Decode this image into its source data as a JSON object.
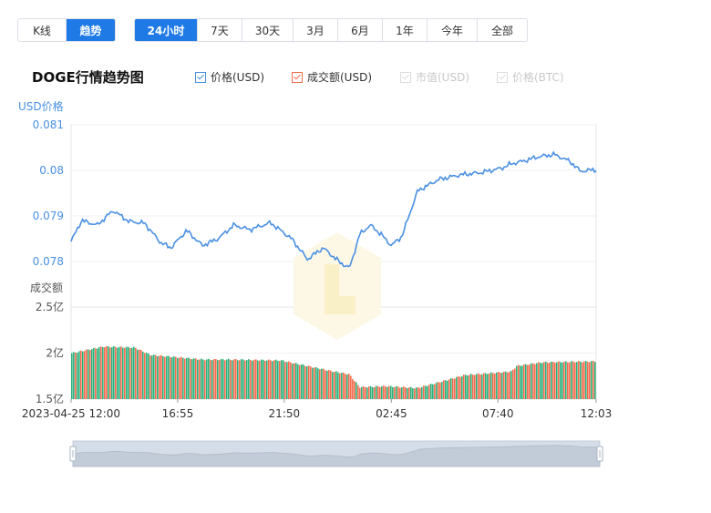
{
  "range_toggle": {
    "items": [
      {
        "label": "K线",
        "active": false
      },
      {
        "label": "趋势",
        "active": true
      }
    ]
  },
  "period_tabs": {
    "items": [
      {
        "label": "24小时",
        "active": true
      },
      {
        "label": "7天",
        "active": false
      },
      {
        "label": "30天",
        "active": false
      },
      {
        "label": "3月",
        "active": false
      },
      {
        "label": "6月",
        "active": false
      },
      {
        "label": "1年",
        "active": false
      },
      {
        "label": "今年",
        "active": false
      },
      {
        "label": "全部",
        "active": false
      }
    ]
  },
  "chart_title": "DOGE行情趋势图",
  "legend": [
    {
      "label": "价格(USD)",
      "checked": true,
      "enabled": true,
      "color": "#4a90e2"
    },
    {
      "label": "成交额(USD)",
      "checked": true,
      "enabled": true,
      "color": "#f26b4d"
    },
    {
      "label": "市值(USD)",
      "checked": false,
      "enabled": false,
      "color": "#cccccc"
    },
    {
      "label": "价格(BTC)",
      "checked": false,
      "enabled": false,
      "color": "#cccccc"
    }
  ],
  "colors": {
    "accent": "#1f7ae6",
    "price_line": "#4a90e2",
    "volume_up": "#2ab07a",
    "volume_down": "#f26b4d",
    "price_axis_text": "#4a90e2",
    "volume_axis_text": "#555555"
  },
  "chart_data": {
    "type": "line",
    "price_axis": {
      "label": "USD价格",
      "ticks": [
        "0.081",
        "0.08",
        "0.079",
        "0.078"
      ],
      "tick_values": [
        0.081,
        0.08,
        0.079,
        0.078
      ],
      "range": [
        0.0778,
        0.081
      ]
    },
    "volume_axis": {
      "label": "成交额",
      "ticks": [
        "2.5亿",
        "2亿",
        "1.5亿"
      ],
      "tick_values": [
        2.5,
        2.0,
        1.5
      ],
      "unit": "亿",
      "range": [
        1.5,
        2.5
      ]
    },
    "x_axis": {
      "tick_labels": [
        "2023-04-25 12:00",
        "16:55",
        "21:50",
        "02:45",
        "07:40",
        "12:03"
      ],
      "start": "2023-04-25 12:00",
      "end": "12:03"
    },
    "price_keypoints": [
      {
        "t": 0.0,
        "v": 0.07844
      },
      {
        "t": 0.02,
        "v": 0.0789
      },
      {
        "t": 0.05,
        "v": 0.0788
      },
      {
        "t": 0.08,
        "v": 0.07912
      },
      {
        "t": 0.11,
        "v": 0.07888
      },
      {
        "t": 0.14,
        "v": 0.07884
      },
      {
        "t": 0.17,
        "v": 0.07842
      },
      {
        "t": 0.19,
        "v": 0.0783
      },
      {
        "t": 0.22,
        "v": 0.07868
      },
      {
        "t": 0.25,
        "v": 0.07835
      },
      {
        "t": 0.28,
        "v": 0.0785
      },
      {
        "t": 0.31,
        "v": 0.0788
      },
      {
        "t": 0.34,
        "v": 0.0787
      },
      {
        "t": 0.38,
        "v": 0.07885
      },
      {
        "t": 0.42,
        "v": 0.0785
      },
      {
        "t": 0.45,
        "v": 0.07805
      },
      {
        "t": 0.48,
        "v": 0.0783
      },
      {
        "t": 0.51,
        "v": 0.078
      },
      {
        "t": 0.53,
        "v": 0.07785
      },
      {
        "t": 0.55,
        "v": 0.0786
      },
      {
        "t": 0.57,
        "v": 0.0788
      },
      {
        "t": 0.59,
        "v": 0.0786
      },
      {
        "t": 0.61,
        "v": 0.07835
      },
      {
        "t": 0.63,
        "v": 0.07855
      },
      {
        "t": 0.66,
        "v": 0.07955
      },
      {
        "t": 0.7,
        "v": 0.0798
      },
      {
        "t": 0.74,
        "v": 0.0799
      },
      {
        "t": 0.78,
        "v": 0.07995
      },
      {
        "t": 0.82,
        "v": 0.08005
      },
      {
        "t": 0.84,
        "v": 0.08015
      },
      {
        "t": 0.86,
        "v": 0.0802
      },
      {
        "t": 0.89,
        "v": 0.0803
      },
      {
        "t": 0.92,
        "v": 0.08035
      },
      {
        "t": 0.95,
        "v": 0.0802
      },
      {
        "t": 0.97,
        "v": 0.07998
      },
      {
        "t": 1.0,
        "v": 0.08002
      }
    ],
    "volume_keypoints": [
      {
        "t": 0.0,
        "v": 2.0
      },
      {
        "t": 0.06,
        "v": 2.07
      },
      {
        "t": 0.12,
        "v": 2.06
      },
      {
        "t": 0.15,
        "v": 1.98
      },
      {
        "t": 0.25,
        "v": 1.93
      },
      {
        "t": 0.3,
        "v": 1.93
      },
      {
        "t": 0.4,
        "v": 1.92
      },
      {
        "t": 0.45,
        "v": 1.86
      },
      {
        "t": 0.5,
        "v": 1.8
      },
      {
        "t": 0.53,
        "v": 1.77
      },
      {
        "t": 0.55,
        "v": 1.63
      },
      {
        "t": 0.6,
        "v": 1.64
      },
      {
        "t": 0.66,
        "v": 1.62
      },
      {
        "t": 0.7,
        "v": 1.68
      },
      {
        "t": 0.75,
        "v": 1.76
      },
      {
        "t": 0.84,
        "v": 1.8
      },
      {
        "t": 0.85,
        "v": 1.86
      },
      {
        "t": 0.9,
        "v": 1.9
      },
      {
        "t": 1.0,
        "v": 1.91
      }
    ]
  }
}
